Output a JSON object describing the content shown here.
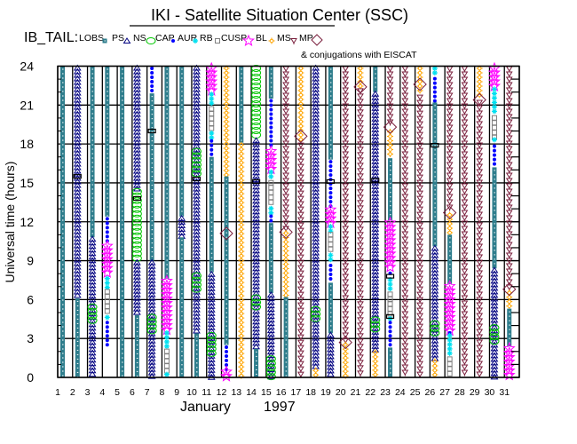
{
  "chart_data": {
    "type": "scatter",
    "title": "IKI - Satellite Situation Center (SSC)",
    "subtitle": "IB_TAIL:",
    "conjugation_note": "& conjugations with EISCAT",
    "ylabel": "Universal time (hours)",
    "xlabel_month": "January",
    "xlabel_year": "1997",
    "ylim": [
      0,
      24
    ],
    "yticks": [
      0,
      3,
      6,
      9,
      12,
      15,
      18,
      21,
      24
    ],
    "days": [
      1,
      2,
      3,
      4,
      5,
      6,
      7,
      8,
      9,
      10,
      11,
      12,
      13,
      14,
      15,
      16,
      17,
      18,
      19,
      20,
      21,
      22,
      23,
      24,
      25,
      26,
      27,
      28,
      29,
      30,
      31
    ],
    "legend": [
      {
        "key": "LOBS",
        "label": "LOBS",
        "color": "#2e7d8c"
      },
      {
        "key": "PS",
        "label": "PS",
        "color": "#000080"
      },
      {
        "key": "NS",
        "label": "NS",
        "color": "#00c800"
      },
      {
        "key": "CAP",
        "label": "CAP",
        "color": "#0000ff"
      },
      {
        "key": "AUR",
        "label": "AUR",
        "color": "#00e0f0"
      },
      {
        "key": "RB",
        "label": "RB",
        "color": "#808080"
      },
      {
        "key": "CUSP",
        "label": "CUSP",
        "color": "#ff00ff"
      },
      {
        "key": "BL",
        "label": "BL",
        "color": "#ffa500"
      },
      {
        "key": "MS",
        "label": "MS",
        "color": "#7a1f3d"
      },
      {
        "key": "MP",
        "label": "MP",
        "color": "#7a1f3d"
      }
    ],
    "segments": [
      [
        [
          "LOBS",
          24,
          0
        ]
      ],
      [
        [
          "PS",
          24,
          6.1
        ],
        [
          "LOBS",
          6.1,
          0
        ]
      ],
      [
        [
          "LOBS",
          24,
          10.8
        ],
        [
          "PS",
          10.8,
          0
        ],
        [
          "NS",
          5.6,
          4.4
        ]
      ],
      [
        [
          "LOBS",
          24,
          12.4
        ],
        [
          "CAP",
          12.4,
          10.3
        ],
        [
          "CUSP",
          10.3,
          7.8
        ],
        [
          "AUR",
          7.8,
          6.8
        ],
        [
          "RB",
          6.8,
          4.8
        ],
        [
          "AUR",
          4.8,
          4.4
        ],
        [
          "CAP",
          4.4,
          2.5
        ]
      ],
      [
        [
          "LOBS",
          24,
          0
        ]
      ],
      [
        [
          "PS",
          24,
          14.5
        ],
        [
          "NS",
          14.5,
          9
        ],
        [
          "PS",
          9,
          4.8
        ],
        [
          "LOBS",
          4.8,
          0
        ]
      ],
      [
        [
          "CAP",
          24,
          21.9
        ],
        [
          "LOBS",
          21.9,
          9
        ],
        [
          "PS",
          9,
          0
        ],
        [
          "NS",
          4.8,
          3.3
        ]
      ],
      [
        [
          "LOBS",
          24,
          7.6
        ],
        [
          "CUSP",
          7.6,
          3.6
        ],
        [
          "AUR",
          3.6,
          2.2
        ],
        [
          "RB",
          2.2,
          0.4
        ],
        [
          "AUR",
          0.4,
          0
        ]
      ],
      [
        [
          "LOBS",
          24,
          12.4
        ],
        [
          "PS",
          12.4,
          10.8
        ],
        [
          "LOBS",
          10.8,
          0
        ]
      ],
      [
        [
          "PS",
          24,
          3.4
        ],
        [
          "NS",
          17.6,
          15.4
        ],
        [
          "NS",
          8,
          6.7
        ],
        [
          "LOBS",
          3.4,
          0
        ]
      ],
      [
        [
          "CUSP",
          24,
          22
        ],
        [
          "AUR",
          22,
          20.9
        ],
        [
          "RB",
          20.9,
          19
        ],
        [
          "AUR",
          19,
          18.4
        ],
        [
          "CAP",
          18.4,
          17
        ],
        [
          "LOBS",
          17,
          8.1
        ],
        [
          "PS",
          8.1,
          0
        ],
        [
          "NS",
          3.4,
          1.6
        ]
      ],
      [
        [
          "BL",
          24,
          15.5
        ],
        [
          "LOBS",
          15.5,
          2.5
        ],
        [
          "CAP",
          2.5,
          0.6
        ],
        [
          "CUSP",
          0.6,
          0
        ]
      ],
      [
        [
          "LOBS",
          24,
          18.1
        ],
        [
          "BL",
          18.1,
          0
        ]
      ],
      [
        [
          "NS",
          24,
          18.4
        ],
        [
          "PS",
          18.4,
          2.2
        ],
        [
          "NS",
          6.3,
          5.2
        ],
        [
          "LOBS",
          2.2,
          0
        ]
      ],
      [
        [
          "LOBS",
          24,
          21.5
        ],
        [
          "CAP",
          21.5,
          17.6
        ],
        [
          "CUSP",
          17.6,
          16
        ],
        [
          "AUR",
          16,
          15.2
        ],
        [
          "RB",
          15.2,
          13.2
        ],
        [
          "AUR",
          13.2,
          12.6
        ],
        [
          "CAP",
          12.6,
          11.9
        ],
        [
          "LOBS",
          11.9,
          6.5
        ],
        [
          "PS",
          6.5,
          0
        ],
        [
          "NS",
          1.6,
          0
        ]
      ],
      [
        [
          "MS",
          24,
          11.3
        ],
        [
          "BL",
          11.3,
          6.2
        ],
        [
          "LOBS",
          6.2,
          0
        ]
      ],
      [
        [
          "BL",
          24,
          18.1
        ],
        [
          "MS",
          18.1,
          0
        ]
      ],
      [
        [
          "PS",
          24,
          0.7
        ],
        [
          "NS",
          5.4,
          4.3
        ],
        [
          "BL",
          0.7,
          0
        ]
      ],
      [
        [
          "LOBS",
          24,
          16.8
        ],
        [
          "CAP",
          16.8,
          13.1
        ],
        [
          "CUSP",
          13.1,
          11.8
        ],
        [
          "AUR",
          11.8,
          11.2
        ],
        [
          "RB",
          11.2,
          9.6
        ],
        [
          "AUR",
          9.6,
          8.8
        ],
        [
          "CAP",
          8.8,
          7.3
        ],
        [
          "LOBS",
          7.3,
          3.4
        ],
        [
          "PS",
          3.4,
          0
        ]
      ],
      [
        [
          "MS",
          24,
          2.7
        ],
        [
          "BL",
          2.7,
          0
        ]
      ],
      [
        [
          "BL",
          24,
          22.3
        ],
        [
          "MS",
          22.3,
          0
        ]
      ],
      [
        [
          "LOBS",
          24,
          22
        ],
        [
          "PS",
          22,
          2.1
        ],
        [
          "NS",
          4.6,
          3.6
        ],
        [
          "BL",
          2.1,
          0
        ]
      ],
      [
        [
          "MS",
          24,
          19.3
        ],
        [
          "BL",
          19.1,
          16.9
        ],
        [
          "LOBS",
          16.9,
          12.1
        ],
        [
          "CUSP",
          12.1,
          8.2
        ],
        [
          "CAP",
          8.2,
          7.8
        ],
        [
          "AUR",
          7.7,
          6.6
        ],
        [
          "RB",
          6.6,
          4.7
        ],
        [
          "AUR",
          4.7,
          4.4
        ],
        [
          "CAP",
          4.4,
          2.3
        ],
        [
          "LOBS",
          2.3,
          0
        ]
      ],
      [
        [
          "MS",
          24,
          0
        ]
      ],
      [
        [
          "BL",
          24,
          21.8
        ],
        [
          "MS",
          21.8,
          0
        ]
      ],
      [
        [
          "AUR",
          24,
          23.2
        ],
        [
          "CAP",
          23.2,
          21.2
        ],
        [
          "LOBS",
          21.2,
          10.1
        ],
        [
          "PS",
          10.1,
          1.4
        ],
        [
          "NS",
          4.3,
          3.3
        ],
        [
          "BL",
          1.4,
          0
        ]
      ],
      [
        [
          "MS",
          24,
          12.8
        ],
        [
          "BL",
          12.7,
          11
        ],
        [
          "LOBS",
          11,
          7.2
        ],
        [
          "CUSP",
          7.2,
          3.6
        ],
        [
          "CAP",
          3.6,
          3.4
        ],
        [
          "AUR",
          3.4,
          1.6
        ],
        [
          "RB",
          1.6,
          0
        ]
      ],
      [
        [
          "MS",
          24,
          0
        ]
      ],
      [
        [
          "BL",
          24,
          21.7
        ],
        [
          "MS",
          21.4,
          0
        ]
      ],
      [
        [
          "CUSP",
          24,
          22.4
        ],
        [
          "AUR",
          22.4,
          20.2
        ],
        [
          "RB",
          20.2,
          18.5
        ],
        [
          "AUR",
          18.5,
          18
        ],
        [
          "CAP",
          18,
          16.2
        ],
        [
          "LOBS",
          16.2,
          8.4
        ],
        [
          "PS",
          8.4,
          0
        ],
        [
          "NS",
          4,
          2.6
        ]
      ],
      [
        [
          "MS",
          24,
          6.9
        ],
        [
          "BL",
          6.7,
          5.3
        ],
        [
          "LOBS",
          5.3,
          2.4
        ],
        [
          "CUSP",
          2.4,
          0
        ]
      ]
    ],
    "conjugations": [
      [
        12,
        11.1
      ],
      [
        17,
        18.6
      ],
      [
        20,
        2.7
      ],
      [
        21,
        22.4
      ],
      [
        23,
        19.3
      ],
      [
        25,
        22.6
      ],
      [
        27,
        12.7
      ],
      [
        29,
        21.4
      ],
      [
        31,
        6.8
      ],
      [
        16,
        11.2
      ]
    ],
    "event_markers": [
      [
        2,
        15.5
      ],
      [
        6,
        13.8
      ],
      [
        7,
        19
      ],
      [
        10,
        15.3
      ],
      [
        14,
        15.1
      ],
      [
        19,
        15.1
      ],
      [
        22,
        15.2
      ],
      [
        23,
        7.8
      ],
      [
        23,
        4.7
      ],
      [
        26,
        17.9
      ]
    ]
  }
}
